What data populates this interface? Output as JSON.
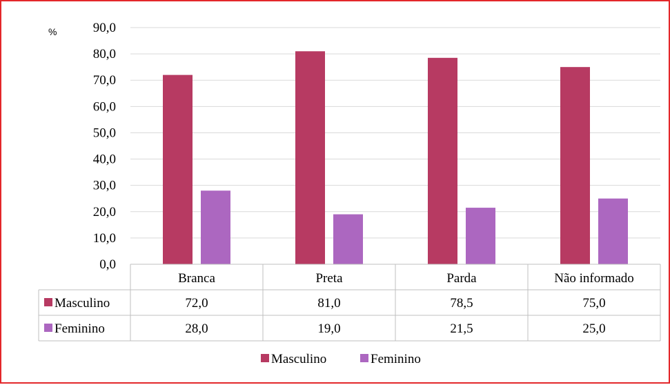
{
  "chart_data": {
    "type": "bar",
    "title": "",
    "unit_label": "%",
    "xlabel": "",
    "ylabel": "",
    "ylim": [
      0,
      90
    ],
    "ytick_step": 10,
    "ytick_labels": [
      "0,0",
      "10,0",
      "20,0",
      "30,0",
      "40,0",
      "50,0",
      "60,0",
      "70,0",
      "80,0",
      "90,0"
    ],
    "grid": true,
    "categories": [
      "Branca",
      "Preta",
      "Parda",
      "Não informado"
    ],
    "series": [
      {
        "name": "Masculino",
        "color": "#b73a62",
        "values": [
          72.0,
          81.0,
          78.5,
          75.0
        ],
        "value_labels": [
          "72,0",
          "81,0",
          "78,5",
          "75,0"
        ]
      },
      {
        "name": "Feminino",
        "color": "#ac67c0",
        "values": [
          28.0,
          19.0,
          21.5,
          25.0
        ],
        "value_labels": [
          "28,0",
          "19,0",
          "21,5",
          "25,0"
        ]
      }
    ],
    "data_table": true,
    "legend_position": "bottom"
  }
}
